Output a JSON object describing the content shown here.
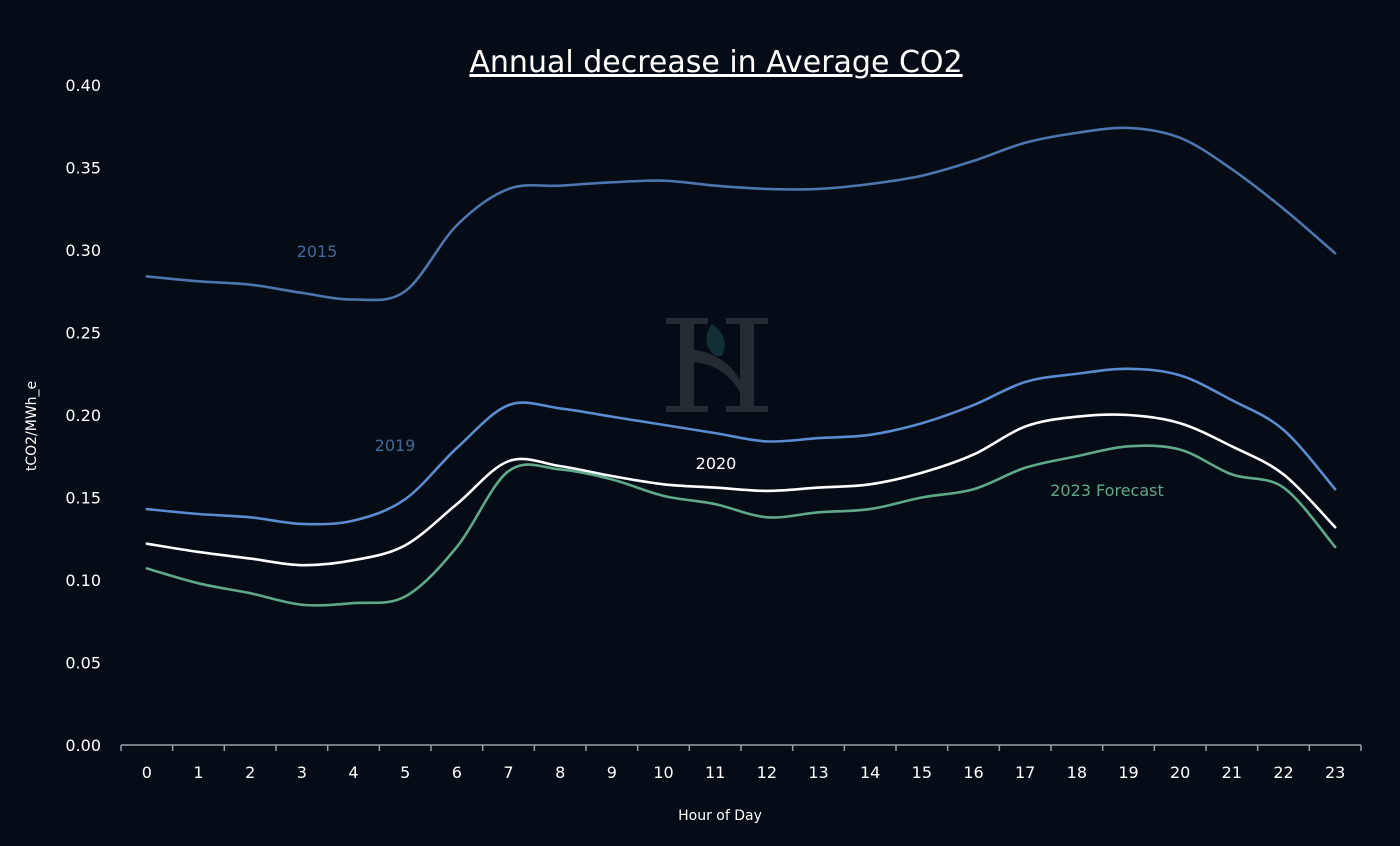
{
  "chart_data": {
    "type": "line",
    "title": "Annual decrease in Average CO2",
    "xlabel": "Hour of Day",
    "ylabel": "tCO2/MWh_e",
    "x": [
      0,
      1,
      2,
      3,
      4,
      5,
      6,
      7,
      8,
      9,
      10,
      11,
      12,
      13,
      14,
      15,
      16,
      17,
      18,
      19,
      20,
      21,
      22,
      23
    ],
    "ylim": [
      0,
      0.4
    ],
    "y_ticks": [
      "0.00",
      "0.05",
      "0.10",
      "0.15",
      "0.20",
      "0.25",
      "0.30",
      "0.35",
      "0.40"
    ],
    "grid": false,
    "series": [
      {
        "name": "2015",
        "color": "#4d75ae",
        "label_color": "#3e6a9c",
        "values": [
          0.284,
          0.281,
          0.279,
          0.274,
          0.27,
          0.275,
          0.315,
          0.337,
          0.339,
          0.341,
          0.342,
          0.339,
          0.337,
          0.337,
          0.34,
          0.345,
          0.354,
          0.365,
          0.371,
          0.374,
          0.368,
          0.349,
          0.325,
          0.298
        ]
      },
      {
        "name": "2019",
        "color": "#5b8bd0",
        "label_color": "#3e6a9c",
        "values": [
          0.143,
          0.14,
          0.138,
          0.134,
          0.136,
          0.149,
          0.18,
          0.206,
          0.204,
          0.199,
          0.194,
          0.189,
          0.184,
          0.186,
          0.188,
          0.195,
          0.206,
          0.22,
          0.225,
          0.228,
          0.224,
          0.209,
          0.191,
          0.155
        ]
      },
      {
        "name": "2020",
        "color": "#ffffff",
        "label_color": "#ffffff",
        "values": [
          0.122,
          0.117,
          0.113,
          0.109,
          0.112,
          0.121,
          0.146,
          0.172,
          0.169,
          0.163,
          0.158,
          0.156,
          0.154,
          0.156,
          0.158,
          0.165,
          0.176,
          0.193,
          0.199,
          0.2,
          0.195,
          0.181,
          0.164,
          0.132
        ]
      },
      {
        "name": "2023 Forecast",
        "color": "#5fa88a",
        "label_color": "#5fa88a",
        "values": [
          0.107,
          0.098,
          0.092,
          0.085,
          0.086,
          0.09,
          0.12,
          0.166,
          0.167,
          0.161,
          0.151,
          0.146,
          0.138,
          0.141,
          0.143,
          0.15,
          0.155,
          0.168,
          0.175,
          0.181,
          0.179,
          0.164,
          0.156,
          0.12
        ]
      }
    ]
  }
}
